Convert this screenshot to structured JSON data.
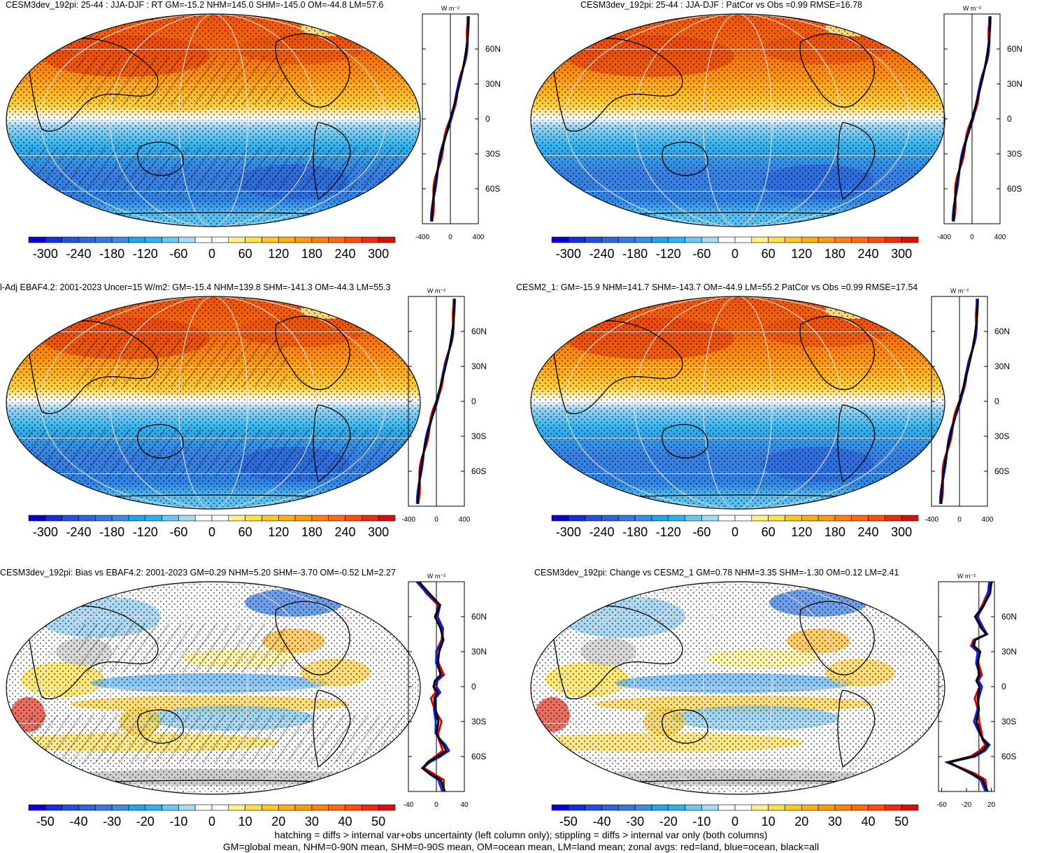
{
  "footer": {
    "line1": "hatching = diffs > internal var+obs uncertainty (left column only); stippling = diffs > internal var only (both columns)",
    "line2": "GM=global mean, NHM=0-90N mean, SHM=0-90S mean, OM=ocean mean, LM=land mean; zonal avgs: red=land, blue=ocean, black=all"
  },
  "zonal_unit": "W m⁻²",
  "lat_labels": [
    "60N",
    "30N",
    "0",
    "30S",
    "60S"
  ],
  "colors": {
    "land": "#e00000",
    "ocean": "#1020e0",
    "all": "#000000",
    "missing": "#c8c8c8",
    "grid": "#d8d8d8"
  },
  "full_scale": {
    "labels": [
      "-300",
      "-240",
      "-180",
      "-120",
      "-60",
      "0",
      "60",
      "120",
      "180",
      "240",
      "300"
    ],
    "colors": [
      "#0a00d8",
      "#1030e0",
      "#2050e0",
      "#2a66dc",
      "#3479e0",
      "#3b8ee8",
      "#1fa6ec",
      "#2cb4ee",
      "#6cc8f0",
      "#a4dcf4",
      "#ffffff",
      "#ffffff",
      "#fff08a",
      "#ffe04a",
      "#ffc628",
      "#ffae14",
      "#ff9a0a",
      "#ff800a",
      "#ff6a0a",
      "#ff4c0a",
      "#f02a0a",
      "#d8100a"
    ]
  },
  "bias_scale": {
    "labels": [
      "-50",
      "-40",
      "-30",
      "-20",
      "-10",
      "0",
      "10",
      "20",
      "30",
      "40",
      "50"
    ],
    "colors": [
      "#0a00d8",
      "#1030e0",
      "#2050e0",
      "#2a66dc",
      "#3479e0",
      "#3b8ee8",
      "#1fa6ec",
      "#2cb4ee",
      "#6cc8f0",
      "#a4dcf4",
      "#ffffff",
      "#ffffff",
      "#fff08a",
      "#ffe04a",
      "#ffc628",
      "#ffae14",
      "#ff9a0a",
      "#ff800a",
      "#ff6a0a",
      "#ff4c0a",
      "#f02a0a",
      "#d8100a"
    ]
  },
  "panels": [
    {
      "title": "CESM3dev_192pi: 25-44 : JJA-DJF : RT GM=-15.2 NHM=145.0 SHM=-145.0 OM=-44.8 LM=57.6",
      "kind": "full",
      "hatch": true,
      "xticks": [
        "-400",
        "0",
        "400"
      ],
      "chart_data": {
        "type": "heatmap",
        "variable": "RT",
        "GM": -15.2,
        "NHM": 145.0,
        "SHM": -145.0,
        "OM": -44.8,
        "LM": 57.6,
        "xlim": [
          -400,
          400
        ]
      }
    },
    {
      "title": "CESM3dev_192pi: 25-44 : JJA-DJF : PatCor vs Obs =0.99 RMSE=16.78",
      "kind": "full",
      "hatch": false,
      "xticks": [
        "-400",
        "0",
        "400"
      ],
      "chart_data": {
        "type": "heatmap",
        "PatCor": 0.99,
        "RMSE": 16.78,
        "xlim": [
          -400,
          400
        ]
      }
    },
    {
      "title": "l-Adj EBAF4.2: 2001-2023 Uncer=15 W/m2: GM=-15.4 NHM=139.8 SHM=-141.3 OM=-44.3 LM=55.3",
      "kind": "full",
      "hatch": true,
      "xticks": [
        "-400",
        "0",
        "400"
      ],
      "chart_data": {
        "type": "heatmap",
        "Uncer": 15,
        "GM": -15.4,
        "NHM": 139.8,
        "SHM": -141.3,
        "OM": -44.3,
        "LM": 55.3,
        "xlim": [
          -400,
          400
        ]
      }
    },
    {
      "title": "CESM2_1: GM=-15.9 NHM=141.7 SHM=-143.7 OM=-44.9 LM=55.2 PatCor vs Obs =0.99 RMSE=17.54",
      "kind": "full",
      "hatch": false,
      "xticks": [
        "-400",
        "0",
        "400"
      ],
      "chart_data": {
        "type": "heatmap",
        "GM": -15.9,
        "NHM": 141.7,
        "SHM": -143.7,
        "OM": -44.9,
        "LM": 55.2,
        "PatCor": 0.99,
        "RMSE": 17.54,
        "xlim": [
          -400,
          400
        ]
      }
    },
    {
      "title": "CESM3dev_192pi: Bias vs EBAF4.2: 2001-2023 GM=0.29 NHM=5.20 SHM=-3.70 OM=-0.52 LM=2.27",
      "kind": "bias",
      "hatch": true,
      "xticks": [
        "-40",
        "0",
        "40"
      ],
      "chart_data": {
        "type": "heatmap",
        "GM": 0.29,
        "NHM": 5.2,
        "SHM": -3.7,
        "OM": -0.52,
        "LM": 2.27,
        "xlim": [
          -40,
          40
        ]
      }
    },
    {
      "title": "CESM3dev_192pi: Change vs CESM2_1 GM=0.78 NHM=3.35 SHM=-1.30 OM=0.12 LM=2.41",
      "kind": "bias",
      "hatch": false,
      "xticks": [
        "-60",
        "-20",
        "20"
      ],
      "chart_data": {
        "type": "heatmap",
        "GM": 0.78,
        "NHM": 3.35,
        "SHM": -1.3,
        "OM": 0.12,
        "LM": 2.41,
        "xlim": [
          -65,
          25
        ]
      }
    }
  ]
}
